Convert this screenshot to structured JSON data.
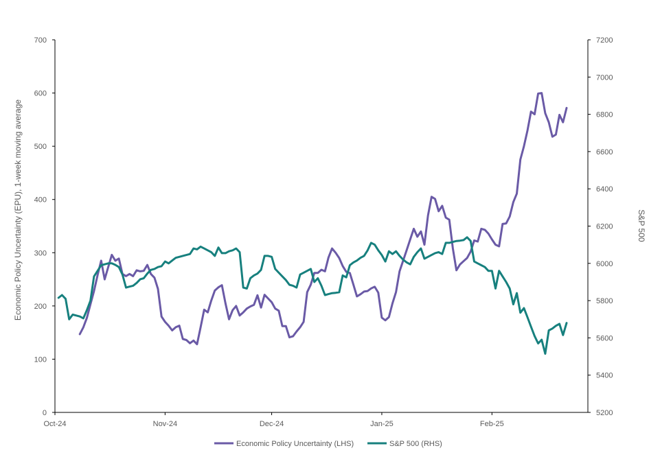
{
  "chart_data": {
    "type": "line",
    "title": "",
    "xlabel": "",
    "ylabel_left": "Economic Policy Uncertainty (EPU), 1-week moving average",
    "ylabel_right": "S&P 500",
    "x_tick_labels": [
      "Oct-24",
      "Nov-24",
      "Dec-24",
      "Jan-25",
      "Feb-25"
    ],
    "x_range_days": [
      0,
      150
    ],
    "x_tick_days": [
      0,
      31,
      61,
      92,
      123
    ],
    "left_axis": {
      "ylim": [
        0,
        700
      ],
      "ticks": [
        0,
        100,
        200,
        300,
        400,
        500,
        600,
        700
      ],
      "tick_labels": [
        "0",
        "100",
        "200",
        "300",
        "400",
        "500",
        "600",
        "700"
      ]
    },
    "right_axis": {
      "ylim": [
        5200,
        7200
      ],
      "ticks": [
        5200,
        5400,
        5600,
        5800,
        6000,
        6200,
        6400,
        6600,
        6800,
        7000,
        7200
      ],
      "tick_labels": [
        "5200",
        "5400",
        "5600",
        "5800",
        "6000",
        "6200",
        "6400",
        "6600",
        "6800",
        "7000",
        "7200"
      ]
    },
    "series": [
      {
        "name": "Economic Policy Uncertainty (LHS)",
        "axis": "left",
        "color": "#6a5aa6",
        "points": [
          [
            7,
            147
          ],
          [
            8,
            160
          ],
          [
            9,
            178
          ],
          [
            10,
            203
          ],
          [
            11,
            228
          ],
          [
            12,
            258
          ],
          [
            13,
            285
          ],
          [
            14,
            250
          ],
          [
            15,
            273
          ],
          [
            16,
            296
          ],
          [
            17,
            285
          ],
          [
            18,
            289
          ],
          [
            19,
            260
          ],
          [
            20,
            256
          ],
          [
            21,
            260
          ],
          [
            22,
            256
          ],
          [
            23,
            267
          ],
          [
            24,
            265
          ],
          [
            25,
            266
          ],
          [
            26,
            277
          ],
          [
            27,
            260
          ],
          [
            28,
            253
          ],
          [
            29,
            232
          ],
          [
            30,
            180
          ],
          [
            31,
            170
          ],
          [
            32,
            163
          ],
          [
            33,
            154
          ],
          [
            34,
            160
          ],
          [
            35,
            163
          ],
          [
            36,
            138
          ],
          [
            37,
            136
          ],
          [
            38,
            130
          ],
          [
            39,
            135
          ],
          [
            40,
            128
          ],
          [
            41,
            160
          ],
          [
            42,
            193
          ],
          [
            43,
            188
          ],
          [
            44,
            210
          ],
          [
            45,
            229
          ],
          [
            46,
            235
          ],
          [
            47,
            239
          ],
          [
            48,
            205
          ],
          [
            49,
            175
          ],
          [
            50,
            192
          ],
          [
            51,
            200
          ],
          [
            52,
            182
          ],
          [
            53,
            188
          ],
          [
            54,
            195
          ],
          [
            55,
            199
          ],
          [
            56,
            202
          ],
          [
            57,
            220
          ],
          [
            58,
            197
          ],
          [
            59,
            221
          ],
          [
            60,
            214
          ],
          [
            61,
            207
          ],
          [
            62,
            195
          ],
          [
            63,
            191
          ],
          [
            64,
            162
          ],
          [
            65,
            162
          ],
          [
            66,
            141
          ],
          [
            67,
            143
          ],
          [
            68,
            152
          ],
          [
            69,
            160
          ],
          [
            70,
            170
          ],
          [
            71,
            226
          ],
          [
            72,
            240
          ],
          [
            73,
            262
          ],
          [
            74,
            262
          ],
          [
            75,
            268
          ],
          [
            76,
            265
          ],
          [
            77,
            291
          ],
          [
            78,
            308
          ],
          [
            79,
            300
          ],
          [
            80,
            290
          ],
          [
            81,
            275
          ],
          [
            82,
            264
          ],
          [
            83,
            262
          ],
          [
            84,
            240
          ],
          [
            85,
            218
          ],
          [
            86,
            222
          ],
          [
            87,
            227
          ],
          [
            88,
            228
          ],
          [
            89,
            233
          ],
          [
            90,
            236
          ],
          [
            91,
            225
          ],
          [
            92,
            178
          ],
          [
            93,
            173
          ],
          [
            94,
            179
          ],
          [
            95,
            205
          ],
          [
            96,
            226
          ],
          [
            97,
            265
          ],
          [
            98,
            285
          ],
          [
            99,
            305
          ],
          [
            100,
            325
          ],
          [
            101,
            345
          ],
          [
            102,
            330
          ],
          [
            103,
            340
          ],
          [
            104,
            315
          ],
          [
            105,
            370
          ],
          [
            106,
            405
          ],
          [
            107,
            401
          ],
          [
            108,
            378
          ],
          [
            109,
            388
          ],
          [
            110,
            366
          ],
          [
            111,
            362
          ],
          [
            112,
            308
          ],
          [
            113,
            267
          ],
          [
            114,
            278
          ],
          [
            115,
            284
          ],
          [
            116,
            290
          ],
          [
            117,
            302
          ],
          [
            118,
            323
          ],
          [
            119,
            321
          ],
          [
            120,
            345
          ],
          [
            121,
            343
          ],
          [
            122,
            336
          ],
          [
            123,
            325
          ],
          [
            124,
            315
          ],
          [
            125,
            312
          ],
          [
            126,
            354
          ],
          [
            127,
            355
          ],
          [
            128,
            368
          ],
          [
            129,
            395
          ],
          [
            130,
            411
          ],
          [
            131,
            475
          ],
          [
            132,
            500
          ],
          [
            133,
            530
          ],
          [
            134,
            565
          ],
          [
            135,
            560
          ],
          [
            136,
            599
          ],
          [
            137,
            600
          ],
          [
            138,
            562
          ],
          [
            139,
            545
          ],
          [
            140,
            518
          ],
          [
            141,
            522
          ],
          [
            142,
            559
          ],
          [
            143,
            545
          ],
          [
            144,
            572
          ]
        ]
      },
      {
        "name": "S&P 500 (RHS)",
        "axis": "right",
        "color": "#17807e",
        "points": [
          [
            1,
            5815
          ],
          [
            2,
            5830
          ],
          [
            3,
            5810
          ],
          [
            4,
            5700
          ],
          [
            5,
            5725
          ],
          [
            6,
            5720
          ],
          [
            7,
            5715
          ],
          [
            8,
            5705
          ],
          [
            9,
            5750
          ],
          [
            10,
            5800
          ],
          [
            11,
            5930
          ],
          [
            12,
            5960
          ],
          [
            13,
            5990
          ],
          [
            14,
            5995
          ],
          [
            15,
            6000
          ],
          [
            16,
            6000
          ],
          [
            17,
            5992
          ],
          [
            18,
            5980
          ],
          [
            19,
            5940
          ],
          [
            20,
            5870
          ],
          [
            21,
            5875
          ],
          [
            22,
            5880
          ],
          [
            23,
            5895
          ],
          [
            24,
            5915
          ],
          [
            25,
            5920
          ],
          [
            26,
            5945
          ],
          [
            27,
            5965
          ],
          [
            28,
            5970
          ],
          [
            29,
            5980
          ],
          [
            30,
            5985
          ],
          [
            31,
            6010
          ],
          [
            32,
            6000
          ],
          [
            33,
            6015
          ],
          [
            34,
            6030
          ],
          [
            35,
            6035
          ],
          [
            36,
            6040
          ],
          [
            37,
            6045
          ],
          [
            38,
            6050
          ],
          [
            39,
            6080
          ],
          [
            40,
            6075
          ],
          [
            41,
            6090
          ],
          [
            42,
            6080
          ],
          [
            43,
            6070
          ],
          [
            44,
            6060
          ],
          [
            45,
            6040
          ],
          [
            46,
            6085
          ],
          [
            47,
            6055
          ],
          [
            48,
            6055
          ],
          [
            49,
            6065
          ],
          [
            50,
            6070
          ],
          [
            51,
            6080
          ],
          [
            52,
            6060
          ],
          [
            53,
            5870
          ],
          [
            54,
            5865
          ],
          [
            55,
            5920
          ],
          [
            56,
            5935
          ],
          [
            57,
            5945
          ],
          [
            58,
            5965
          ],
          [
            59,
            6040
          ],
          [
            60,
            6040
          ],
          [
            61,
            6035
          ],
          [
            62,
            5970
          ],
          [
            63,
            5950
          ],
          [
            64,
            5930
          ],
          [
            65,
            5910
          ],
          [
            66,
            5885
          ],
          [
            67,
            5880
          ],
          [
            68,
            5870
          ],
          [
            69,
            5940
          ],
          [
            70,
            5950
          ],
          [
            71,
            5960
          ],
          [
            72,
            5970
          ],
          [
            73,
            5900
          ],
          [
            74,
            5920
          ],
          [
            75,
            5880
          ],
          [
            76,
            5830
          ],
          [
            77,
            5835
          ],
          [
            78,
            5840
          ],
          [
            79,
            5842
          ],
          [
            80,
            5845
          ],
          [
            81,
            5935
          ],
          [
            82,
            5925
          ],
          [
            83,
            5990
          ],
          [
            84,
            6005
          ],
          [
            85,
            6015
          ],
          [
            86,
            6030
          ],
          [
            87,
            6040
          ],
          [
            88,
            6070
          ],
          [
            89,
            6110
          ],
          [
            90,
            6100
          ],
          [
            91,
            6070
          ],
          [
            92,
            6045
          ],
          [
            93,
            6010
          ],
          [
            94,
            6065
          ],
          [
            95,
            6050
          ],
          [
            96,
            6065
          ],
          [
            97,
            6040
          ],
          [
            98,
            6020
          ],
          [
            99,
            6005
          ],
          [
            100,
            5995
          ],
          [
            101,
            6035
          ],
          [
            102,
            6060
          ],
          [
            103,
            6080
          ],
          [
            104,
            6025
          ],
          [
            105,
            6035
          ],
          [
            106,
            6045
          ],
          [
            107,
            6055
          ],
          [
            108,
            6060
          ],
          [
            109,
            6050
          ],
          [
            110,
            6110
          ],
          [
            111,
            6110
          ],
          [
            112,
            6115
          ],
          [
            113,
            6120
          ],
          [
            114,
            6122
          ],
          [
            115,
            6125
          ],
          [
            116,
            6140
          ],
          [
            117,
            6120
          ],
          [
            118,
            6010
          ],
          [
            119,
            6000
          ],
          [
            120,
            5990
          ],
          [
            121,
            5980
          ],
          [
            122,
            5960
          ],
          [
            123,
            5960
          ],
          [
            124,
            5865
          ],
          [
            125,
            5960
          ],
          [
            126,
            5930
          ],
          [
            127,
            5900
          ],
          [
            128,
            5865
          ],
          [
            129,
            5780
          ],
          [
            130,
            5840
          ],
          [
            131,
            5735
          ],
          [
            132,
            5760
          ],
          [
            133,
            5710
          ],
          [
            134,
            5660
          ],
          [
            135,
            5610
          ],
          [
            136,
            5570
          ],
          [
            137,
            5590
          ],
          [
            138,
            5515
          ],
          [
            139,
            5640
          ],
          [
            140,
            5650
          ],
          [
            141,
            5665
          ],
          [
            142,
            5675
          ],
          [
            143,
            5615
          ],
          [
            144,
            5680
          ]
        ]
      }
    ],
    "legend": {
      "placement": "bottom-center",
      "entries": [
        "Economic Policy Uncertainty (LHS)",
        "S&P 500 (RHS)"
      ]
    },
    "grid": false
  }
}
